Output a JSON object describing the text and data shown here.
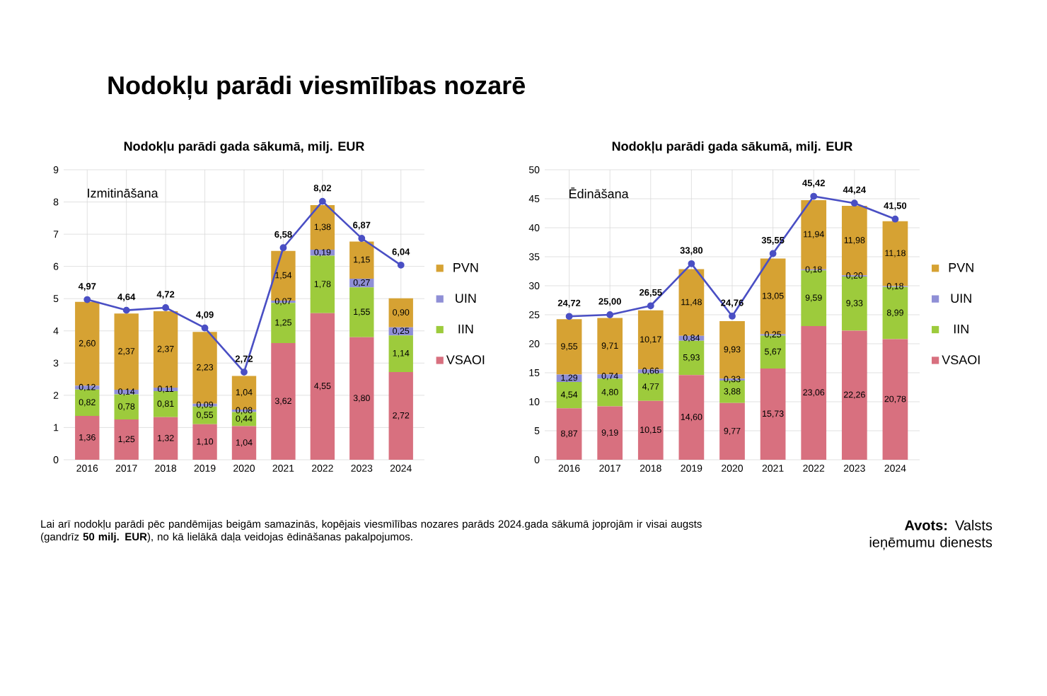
{
  "chart_data": [
    {
      "type": "bar",
      "stacked": true,
      "title": "Nodokļu parādi gada sākumā, milj. EUR",
      "subtitle": "Izmitināšana",
      "annotations": [
        "Nodokļu parādi viesmīlības nozarē"
      ],
      "categories": [
        "2016",
        "2017",
        "2018",
        "2019",
        "2020",
        "2021",
        "2022",
        "2023",
        "2024"
      ],
      "series": [
        {
          "name": "VSAOI",
          "color": "#d8707f",
          "values": [
            1.36,
            1.25,
            1.32,
            1.1,
            1.04,
            3.62,
            4.55,
            3.8,
            2.72
          ],
          "value_labels": [
            "1,36",
            "1,25",
            "1,32",
            "1,10",
            "1,04",
            "3,62",
            "4,55",
            "3,80",
            "2,72"
          ]
        },
        {
          "name": "IIN",
          "color": "#9dcb3c",
          "values": [
            0.82,
            0.78,
            0.81,
            0.55,
            0.44,
            1.25,
            1.78,
            1.55,
            1.14
          ],
          "value_labels": [
            "0,82",
            "0,78",
            "0,81",
            "0,55",
            "0,44",
            "1,25",
            "1,78",
            "1,55",
            "1,14"
          ]
        },
        {
          "name": "UIN",
          "color": "#8f8fd6",
          "values": [
            0.12,
            0.14,
            0.11,
            0.09,
            0.08,
            0.07,
            0.19,
            0.27,
            0.25
          ],
          "value_labels": [
            "0,12",
            "0,14",
            "0,11",
            "0,09",
            "0,08",
            "0,07",
            "0,19",
            "0,27",
            "0,25"
          ]
        },
        {
          "name": "PVN",
          "color": "#d6a233",
          "values": [
            2.6,
            2.37,
            2.37,
            2.23,
            1.04,
            1.54,
            1.38,
            1.15,
            0.9
          ],
          "value_labels": [
            "2,60",
            "2,37",
            "2,37",
            "2,23",
            "1,04",
            "1,54",
            "1,38",
            "1,15",
            "0,90"
          ]
        },
        {
          "type": "line",
          "color": "#4a4fc4",
          "values": [
            4.97,
            4.64,
            4.72,
            4.09,
            2.72,
            6.58,
            8.02,
            6.87,
            6.04
          ],
          "value_labels": [
            "4,97",
            "4,64",
            "4,72",
            "4,09",
            "2,72",
            "6,58",
            "8,02",
            "6,87",
            "6,04"
          ]
        }
      ],
      "ylim": [
        0,
        9
      ],
      "yticks": [
        0,
        1,
        2,
        3,
        4,
        5,
        6,
        7,
        8,
        9
      ],
      "grid": true,
      "legend": "right",
      "marker": "circle",
      "line_style": "solid"
    },
    {
      "type": "bar",
      "stacked": true,
      "title": "Nodokļu parādi gada sākumā, milj. EUR",
      "subtitle": "Ēdināšana",
      "annotations": [
        "Lai arī nodokļu parādi pēc pandēmijas beigām samazinās, kopējais viesmīlības nozares parāds 2024.gada sākumā joprojām ir visai augsts (gandrīz **50 milj. EUR**), no kā lielākā daļa veidojas ēdināšanas pakalpojumos.",
        "**Avots:** Valsts ieņēmumu dienests"
      ],
      "categories": [
        "2016",
        "2017",
        "2018",
        "2019",
        "2020",
        "2021",
        "2022",
        "2023",
        "2024"
      ],
      "series": [
        {
          "name": "VSAOI",
          "color": "#d8707f",
          "values": [
            8.87,
            9.19,
            10.15,
            14.6,
            9.77,
            15.73,
            23.06,
            22.26,
            20.78
          ],
          "value_labels": [
            "8,87",
            "9,19",
            "10,15",
            "14,60",
            "9,77",
            "15,73",
            "23,06",
            "22,26",
            "20,78"
          ]
        },
        {
          "name": "IIN",
          "color": "#9dcb3c",
          "values": [
            4.54,
            4.8,
            4.77,
            5.93,
            3.88,
            5.67,
            9.59,
            9.33,
            8.99
          ],
          "value_labels": [
            "4,54",
            "4,80",
            "4,77",
            "5,93",
            "3,88",
            "5,67",
            "9,59",
            "9,33",
            "8,99"
          ]
        },
        {
          "name": "UIN",
          "color": "#8f8fd6",
          "values": [
            1.29,
            0.74,
            0.66,
            0.84,
            0.33,
            0.25,
            0.18,
            0.2,
            0.18
          ],
          "value_labels": [
            "1,29",
            "0,74",
            "0,66",
            "0,84",
            "0,33",
            "0,25",
            "0,18",
            "0,20",
            "0,18"
          ]
        },
        {
          "name": "PVN",
          "color": "#d6a233",
          "values": [
            9.55,
            9.71,
            10.17,
            11.48,
            9.93,
            13.05,
            11.94,
            11.98,
            11.18
          ],
          "value_labels": [
            "9,55",
            "9,71",
            "10,17",
            "11,48",
            "9,93",
            "13,05",
            "11,94",
            "11,98",
            "11,18"
          ]
        },
        {
          "type": "line",
          "color": "#4a4fc4",
          "values": [
            24.72,
            25.0,
            26.55,
            33.8,
            24.76,
            35.55,
            45.42,
            44.24,
            41.5
          ],
          "value_labels": [
            "24,72",
            "25,00",
            "26,55",
            "33,80",
            "24,76",
            "35,55",
            "45,42",
            "44,24",
            "41,50"
          ]
        }
      ],
      "ylim": [
        0,
        50
      ],
      "yticks": [
        0,
        5,
        10,
        15,
        20,
        25,
        30,
        35,
        40,
        45,
        50
      ],
      "grid": true,
      "legend": "right",
      "marker": "circle",
      "line_style": "solid"
    }
  ]
}
